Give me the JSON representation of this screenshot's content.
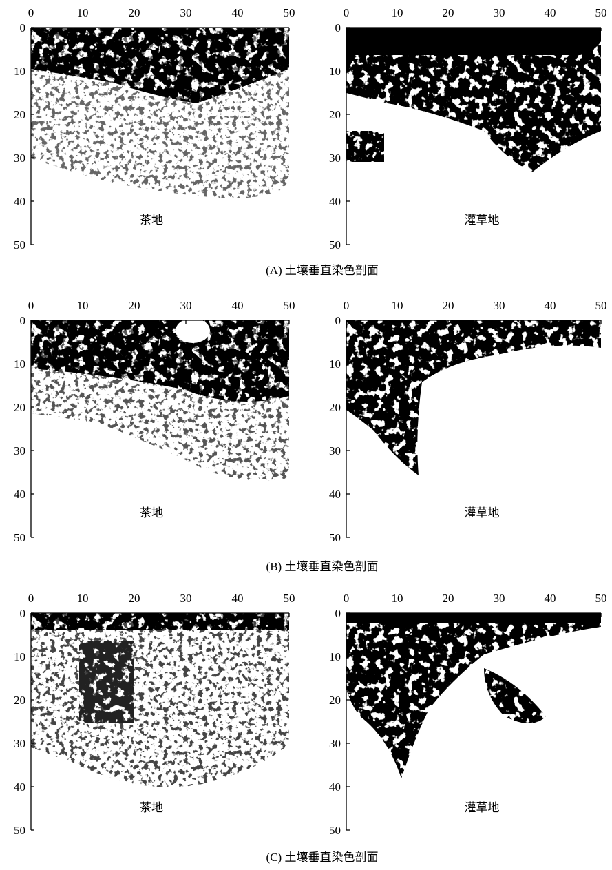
{
  "panels": [
    {
      "label": "茶地",
      "xlim": [
        0,
        50
      ],
      "ylim": [
        0,
        50
      ],
      "xticks": [
        0,
        10,
        20,
        30,
        40,
        50
      ],
      "yticks": [
        0,
        10,
        20,
        30,
        40,
        50
      ]
    },
    {
      "label": "灌草地",
      "xlim": [
        0,
        50
      ],
      "ylim": [
        0,
        50
      ],
      "xticks": [
        0,
        10,
        20,
        30,
        40,
        50
      ],
      "yticks": [
        0,
        10,
        20,
        30,
        40,
        50
      ]
    },
    {
      "label": "茶地",
      "xlim": [
        0,
        50
      ],
      "ylim": [
        0,
        50
      ],
      "xticks": [
        0,
        10,
        20,
        30,
        40,
        50
      ],
      "yticks": [
        0,
        10,
        20,
        30,
        40,
        50
      ]
    },
    {
      "label": "灌草地",
      "xlim": [
        0,
        50
      ],
      "ylim": [
        0,
        50
      ],
      "xticks": [
        0,
        10,
        20,
        30,
        40,
        50
      ],
      "yticks": [
        0,
        10,
        20,
        30,
        40,
        50
      ]
    },
    {
      "label": "茶地",
      "xlim": [
        0,
        50
      ],
      "ylim": [
        0,
        50
      ],
      "xticks": [
        0,
        10,
        20,
        30,
        40,
        50
      ],
      "yticks": [
        0,
        10,
        20,
        30,
        40,
        50
      ]
    },
    {
      "label": "灌草地",
      "xlim": [
        0,
        50
      ],
      "ylim": [
        0,
        50
      ],
      "xticks": [
        0,
        10,
        20,
        30,
        40,
        50
      ],
      "yticks": [
        0,
        10,
        20,
        30,
        40,
        50
      ]
    }
  ],
  "captions": [
    "(A) 土壤垂直染色剖面",
    "(B) 土壤垂直染色剖面",
    "(C) 土壤垂直染色剖面"
  ]
}
